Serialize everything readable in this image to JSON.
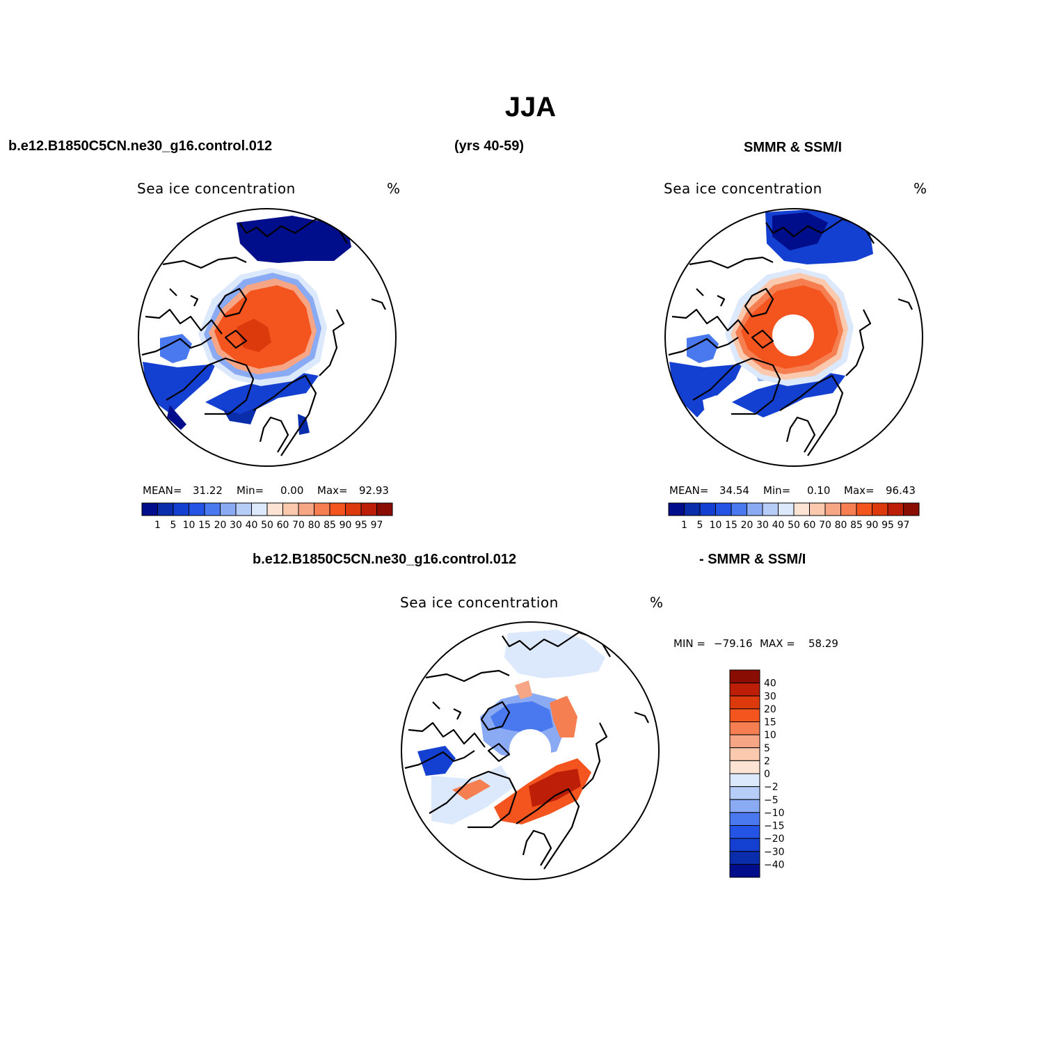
{
  "figure": {
    "title": "JJA",
    "case_label": "b.e12.B1850C5CN.ne30_g16.control.012",
    "years_label": "(yrs 40-59)",
    "obs_label": "SMMR & SSM/I",
    "diff_case_label": "b.e12.B1850C5CN.ne30_g16.control.012",
    "diff_obs_label": "- SMMR & SSM/I"
  },
  "chart_data": [
    {
      "type": "heatmap",
      "projection": "north-polar-stereographic",
      "title": "Sea ice concentration",
      "units": "%",
      "stats": {
        "mean_label": "MEAN=",
        "mean": "31.22",
        "min_label": "Min=",
        "min": "0.00",
        "max_label": "Max=",
        "max": "92.93"
      },
      "colorbar": {
        "orientation": "horizontal",
        "levels": [
          "1",
          "5",
          "10",
          "15",
          "20",
          "30",
          "40",
          "50",
          "60",
          "70",
          "80",
          "85",
          "90",
          "95",
          "97"
        ],
        "colors": [
          "#000e8c",
          "#0a2dac",
          "#1440d2",
          "#2454e6",
          "#4a78ee",
          "#8aaaf4",
          "#b6cdf8",
          "#dce8fb",
          "#fde3d3",
          "#fac9ae",
          "#f7a685",
          "#f67f52",
          "#f4551f",
          "#dc3a0c",
          "#bd1e07",
          "#8a0d04"
        ]
      },
      "features": [
        "Central Arctic ice ~85-93%",
        "Marginal ice zones 1-40%",
        "Hudson Bay 15-20%",
        "Baffin/Labrador and Barents low concentration"
      ]
    },
    {
      "type": "heatmap",
      "projection": "north-polar-stereographic",
      "title": "Sea ice concentration",
      "units": "%",
      "stats": {
        "mean_label": "MEAN=",
        "mean": "34.54",
        "min_label": "Min=",
        "min": "0.10",
        "max_label": "Max=",
        "max": "96.43"
      },
      "colorbar": {
        "orientation": "horizontal",
        "levels": [
          "1",
          "5",
          "10",
          "15",
          "20",
          "30",
          "40",
          "50",
          "60",
          "70",
          "80",
          "85",
          "90",
          "95",
          "97"
        ],
        "colors": [
          "#000e8c",
          "#0a2dac",
          "#1440d2",
          "#2454e6",
          "#4a78ee",
          "#8aaaf4",
          "#b6cdf8",
          "#dce8fb",
          "#fde3d3",
          "#fac9ae",
          "#f7a685",
          "#f67f52",
          "#f4551f",
          "#dc3a0c",
          "#bd1e07",
          "#8a0d04"
        ]
      },
      "features": [
        "Central Arctic ice ~85-96%",
        "Pole hole (no data)",
        "Hudson Bay 15-20%"
      ]
    },
    {
      "type": "heatmap",
      "projection": "north-polar-stereographic",
      "title": "Sea ice concentration",
      "units": "%",
      "stats": {
        "min_label": "MIN =",
        "min": "−79.16",
        "max_label": "MAX =",
        "max": "58.29"
      },
      "colorbar": {
        "orientation": "vertical",
        "levels": [
          "40",
          "30",
          "20",
          "15",
          "10",
          "5",
          "2",
          "0",
          "−2",
          "−5",
          "−10",
          "−15",
          "−20",
          "−30",
          "−40"
        ],
        "colors": [
          "#8a0d04",
          "#bd1e07",
          "#dc3a0c",
          "#f4551f",
          "#f67f52",
          "#f7a685",
          "#fac9ae",
          "#fde3d3",
          "#dce8fb",
          "#b6cdf8",
          "#8aaaf4",
          "#4a78ee",
          "#2454e6",
          "#1440d2",
          "#0a2dac",
          "#000e8c"
        ]
      },
      "features": [
        "Model higher along Siberian/Barents margin (+20 to +40)",
        "Model lower in Canadian Arctic and Hudson Bay (−10 to −40)",
        "Pole hole (no data)"
      ]
    }
  ]
}
